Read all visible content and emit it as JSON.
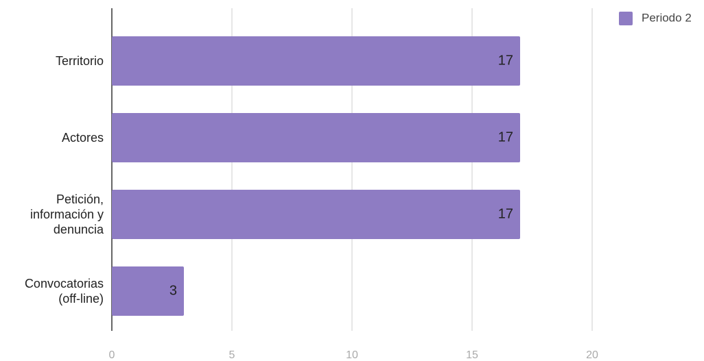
{
  "chart_data": {
    "type": "bar",
    "orientation": "horizontal",
    "categories": [
      "Territorio",
      "Actores",
      "Petición, información y denuncia",
      "Convocatorias (off-line)"
    ],
    "series": [
      {
        "name": "Periodo 2",
        "color": "#8e7cc3",
        "values": [
          17,
          17,
          17,
          3
        ]
      }
    ],
    "xlim": [
      0,
      20
    ],
    "xticks": [
      0,
      5,
      10,
      15,
      20
    ],
    "grid": true,
    "legend": "top-right"
  }
}
